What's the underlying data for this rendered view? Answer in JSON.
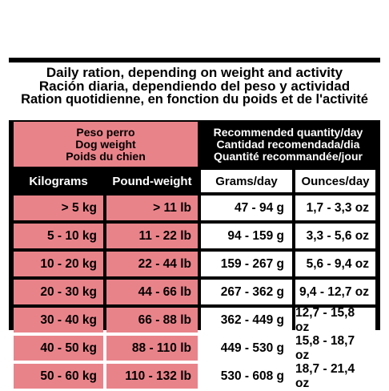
{
  "title": {
    "line_en": "Daily ration, depending on weight and activity",
    "line_es": "Ración diaria, dependiendo del peso y actividad",
    "line_fr": "Ration quotidienne, en fonction du poids et de l'activité"
  },
  "header_left": [
    "Peso perro",
    "Dog weight",
    "Poids du chien"
  ],
  "header_right": [
    "Recommended quantity/day",
    "Cantidad recomendada/dia",
    "Quantité recommandée/jour"
  ],
  "columns": [
    "Kilograms",
    "Pound-weight",
    "Grams/day",
    "Ounces/day"
  ],
  "rows": [
    [
      ">  5 kg",
      ">  11 lb",
      "47 - 94 g",
      "1,7 - 3,3 oz"
    ],
    [
      "5 - 10 kg",
      "11 - 22 lb",
      "94 - 159 g",
      "3,3 - 5,6 oz"
    ],
    [
      "10 - 20 kg",
      "22 - 44 lb",
      "159 - 267 g",
      "5,6 - 9,4 oz"
    ],
    [
      "20 - 30 kg",
      "44 - 66 lb",
      "267 - 362 g",
      "9,4 - 12,7 oz"
    ],
    [
      "30 - 40 kg",
      "66 - 88 lb",
      "362 - 449 g",
      "12,7 - 15,8 oz"
    ],
    [
      "40 - 50 kg",
      "88 - 110 lb",
      "449 - 530 g",
      "15,8 - 18,7 oz"
    ],
    [
      "50 - 60 kg",
      "110 - 132 lb",
      "530 - 608 g",
      "18,7 - 21,4 oz"
    ]
  ]
}
